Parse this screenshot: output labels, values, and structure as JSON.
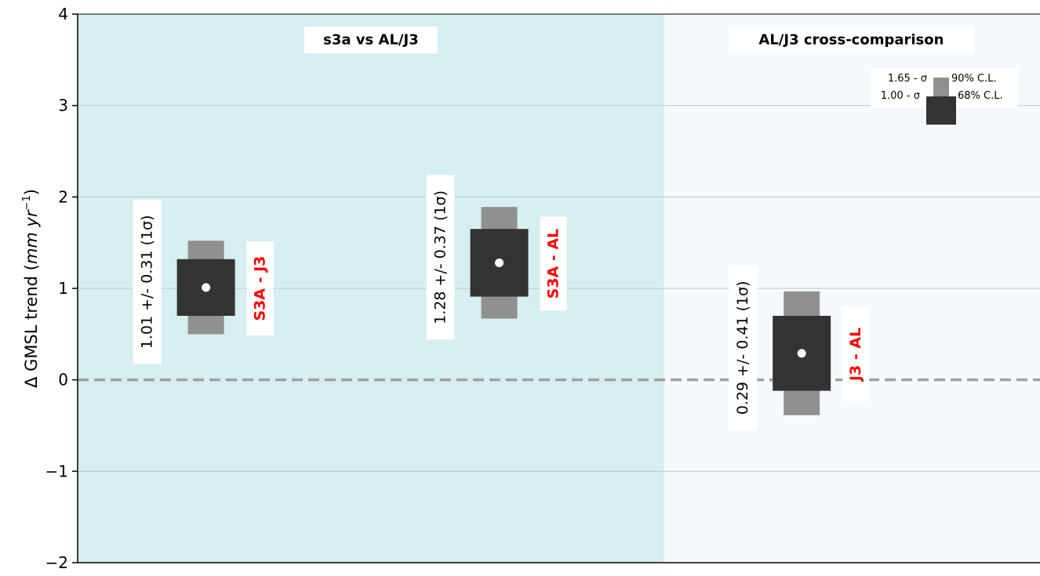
{
  "chart_data": {
    "type": "scatter",
    "ylabel_prefix": "Δ GMSL trend (",
    "ylabel_unit": "mm yr",
    "ylabel_exp": "−1",
    "ylabel_suffix": ")",
    "ylim": [
      -2,
      4
    ],
    "yticks": [
      -2,
      -1,
      0,
      1,
      2,
      3,
      4
    ],
    "ytick_labels": [
      "−2",
      "−1",
      "0",
      "1",
      "2",
      "3",
      "4"
    ],
    "xlim": [
      0,
      5.25
    ],
    "grid": true,
    "zero_line": true,
    "panels": [
      {
        "title": "s3a vs AL/J3",
        "x_start": 0,
        "x_end": 3.2,
        "color": "#d7eef0"
      },
      {
        "title": "AL/J3 cross-comparison",
        "x_start": 3.2,
        "x_end": 5.25,
        "color": "#f5f9fe"
      }
    ],
    "series": [
      {
        "name": "S3A - J3",
        "x": 0.7,
        "value": 1.01,
        "sigma": 0.31,
        "text": "1.01 +/- 0.31 (1σ)"
      },
      {
        "name": "S3A - AL",
        "x": 2.3,
        "value": 1.28,
        "sigma": 0.37,
        "text": "1.28 +/- 0.37 (1σ)"
      },
      {
        "name": "J3 - AL",
        "x": 3.95,
        "value": 0.29,
        "sigma": 0.41,
        "text": "0.29 +/- 0.41 (1σ)"
      }
    ],
    "legend": {
      "position": "top-right",
      "entries": [
        {
          "sigma_label": "1.65 - σ",
          "cl_label": "90% C.L.",
          "color": "#909090"
        },
        {
          "sigma_label": "1.00 - σ",
          "cl_label": "68% C.L.",
          "color": "#333333"
        }
      ]
    },
    "colors": {
      "outer_box": "#909090",
      "inner_box": "#333333",
      "center_dot": "#ffffff",
      "pair_label": "#ff0000",
      "zero_line": "#a0a0a0",
      "grid": "#b8c8c8"
    }
  }
}
